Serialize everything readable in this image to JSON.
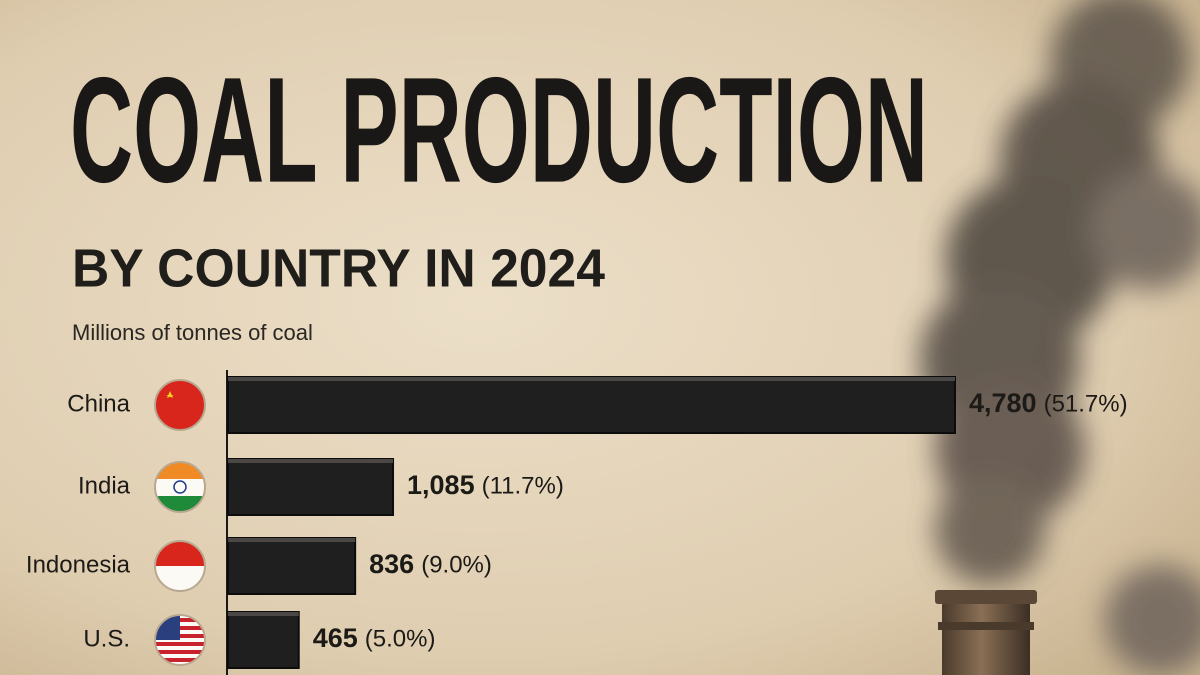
{
  "chart_data": {
    "type": "bar",
    "orientation": "horizontal",
    "title": "COAL PRODUCTION",
    "subtitle": "BY COUNTRY IN 2024",
    "axis_label": "Millions of tonnes of coal",
    "categories": [
      "China",
      "India",
      "Indonesia",
      "U.S."
    ],
    "values": [
      4780,
      1085,
      836,
      465
    ],
    "value_labels": [
      "4,780",
      "1,085",
      "836",
      "465"
    ],
    "shares": [
      51.7,
      11.7,
      9.0,
      5.0
    ],
    "share_labels": [
      "(51.7%)",
      "(11.7%)",
      "(9.0%)",
      "(5.0%)"
    ],
    "color": "#1f1f1f"
  }
}
